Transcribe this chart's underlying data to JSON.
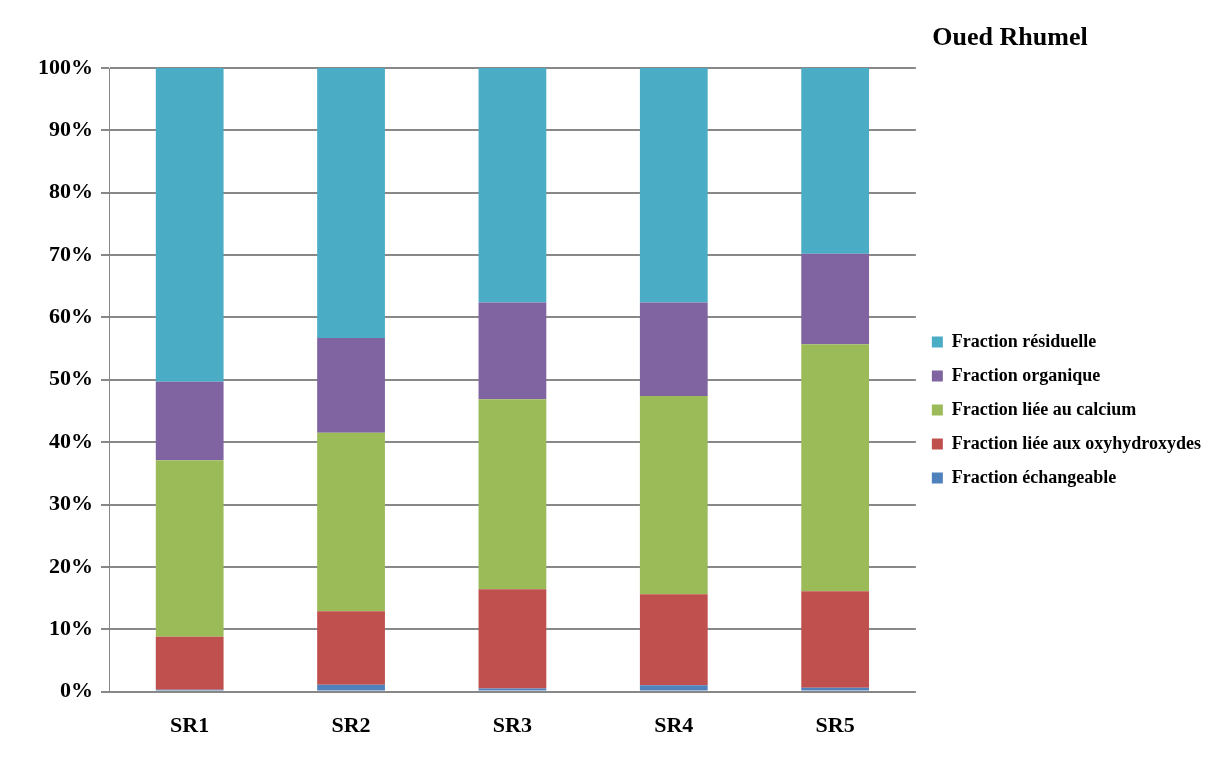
{
  "chart_data": {
    "type": "bar",
    "title": "Oued Rhumel",
    "stacked": true,
    "categories": [
      "SR1",
      "SR2",
      "SR3",
      "SR4",
      "SR5"
    ],
    "series": [
      {
        "name": "Fraction échangeable",
        "color": "#4f81bd",
        "values": [
          0.3,
          1.1,
          0.5,
          1.0,
          0.6
        ]
      },
      {
        "name": "Fraction liée aux oxyhydroxydes",
        "color": "#c0504d",
        "values": [
          8.5,
          11.8,
          15.9,
          14.6,
          15.5
        ]
      },
      {
        "name": "Fraction liée au calcium",
        "color": "#9bbb59",
        "values": [
          28.3,
          28.6,
          30.5,
          31.8,
          39.6
        ]
      },
      {
        "name": "Fraction organique",
        "color": "#8064a2",
        "values": [
          12.6,
          15.2,
          15.5,
          15.0,
          14.5
        ]
      },
      {
        "name": "Fraction résiduelle",
        "color": "#4bacc6",
        "values": [
          50.3,
          43.3,
          37.6,
          37.6,
          29.8
        ]
      }
    ],
    "ylim": [
      0,
      100
    ],
    "yticks": [
      {
        "value": 0,
        "label": "0%"
      },
      {
        "value": 10,
        "label": "10%"
      },
      {
        "value": 20,
        "label": "20%"
      },
      {
        "value": 30,
        "label": "30%"
      },
      {
        "value": 40,
        "label": "40%"
      },
      {
        "value": 50,
        "label": "50%"
      },
      {
        "value": 60,
        "label": "60%"
      },
      {
        "value": 70,
        "label": "70%"
      },
      {
        "value": 80,
        "label": "80%"
      },
      {
        "value": 90,
        "label": "90%"
      },
      {
        "value": 100,
        "label": "100%"
      }
    ],
    "grid": "y",
    "legend": "right"
  }
}
